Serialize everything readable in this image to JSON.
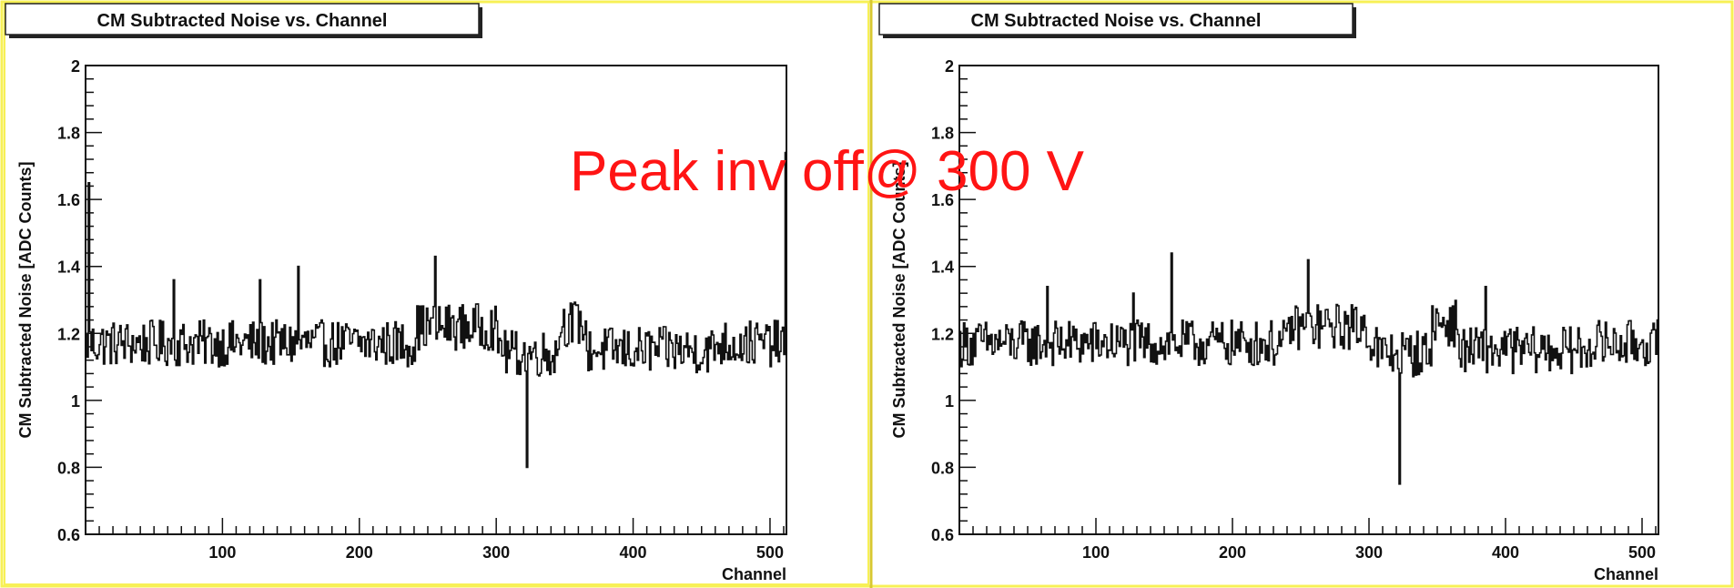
{
  "overlay_text": "Peak inv off@ 300 V",
  "colors": {
    "frame": "#f7f056",
    "divider": "#d8c830",
    "line": "#111111",
    "annotation": "#ff1414"
  },
  "chart_data": [
    {
      "type": "line",
      "title": "CM Subtracted Noise vs. Channel",
      "xlabel": "Channel",
      "ylabel": "CM Subtracted Noise [ADC Counts]",
      "xlim": [
        0,
        512
      ],
      "ylim": [
        0.6,
        2.0
      ],
      "xticks": [
        100,
        200,
        300,
        400,
        500
      ],
      "yticks": [
        0.6,
        0.8,
        1.0,
        1.2,
        1.4,
        1.6,
        1.8,
        2.0
      ],
      "ytick_labels": [
        "0.6",
        "0.8",
        "1",
        "1.2",
        "1.4",
        "1.6",
        "1.8",
        "2"
      ],
      "grid": false,
      "baseline": 1.17,
      "spikes": [
        {
          "x": 2,
          "y": 1.65
        },
        {
          "x": 64,
          "y": 1.36
        },
        {
          "x": 127,
          "y": 1.36
        },
        {
          "x": 155,
          "y": 1.4
        },
        {
          "x": 255,
          "y": 1.43
        },
        {
          "x": 322,
          "y": 0.8
        },
        {
          "x": 511,
          "y": 1.74
        }
      ]
    },
    {
      "type": "line",
      "title": "CM Subtracted Noise vs. Channel",
      "xlabel": "Channel",
      "ylabel": "CM Subtracted Noise [ADC Counts]",
      "xlim": [
        0,
        512
      ],
      "ylim": [
        0.6,
        2.0
      ],
      "xticks": [
        100,
        200,
        300,
        400,
        500
      ],
      "yticks": [
        0.6,
        0.8,
        1.0,
        1.2,
        1.4,
        1.6,
        1.8,
        2.0
      ],
      "ytick_labels": [
        "0.6",
        "0.8",
        "1",
        "1.2",
        "1.4",
        "1.6",
        "1.8",
        "2"
      ],
      "grid": false,
      "baseline": 1.17,
      "spikes": [
        {
          "x": 64,
          "y": 1.34
        },
        {
          "x": 127,
          "y": 1.32
        },
        {
          "x": 155,
          "y": 1.44
        },
        {
          "x": 255,
          "y": 1.42
        },
        {
          "x": 322,
          "y": 0.75
        },
        {
          "x": 385,
          "y": 1.34
        },
        {
          "x": 511,
          "y": 1.24
        }
      ]
    }
  ]
}
